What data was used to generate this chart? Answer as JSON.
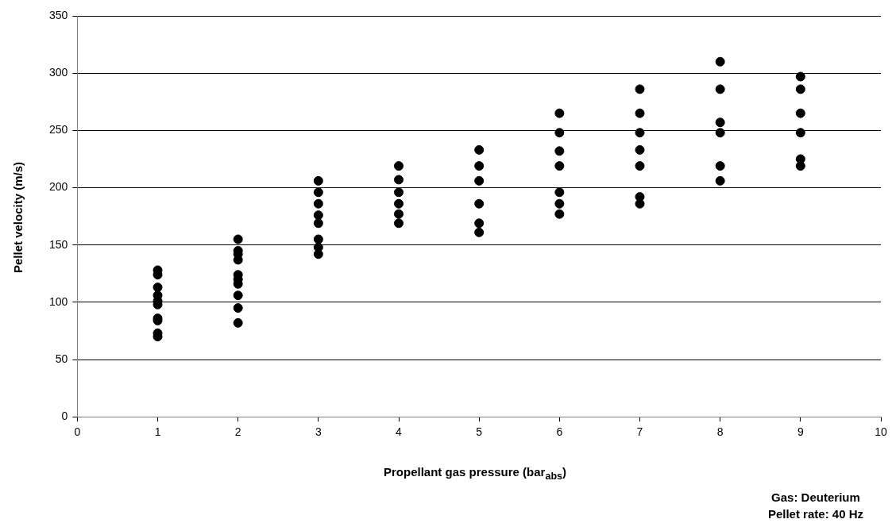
{
  "chart_data": {
    "type": "scatter",
    "xlabel": "Propellant gas pressure (bar$_{abs}$)",
    "ylabel": "Pellet velocity (m/s)",
    "annotations": [
      "Gas: Deuterium",
      "Pellet rate: 40 Hz"
    ],
    "xlim": [
      0,
      10
    ],
    "xticks": [
      0,
      1,
      2,
      3,
      4,
      5,
      6,
      7,
      8,
      9,
      10
    ],
    "ylim": [
      0,
      350
    ],
    "yticks": [
      0,
      50,
      100,
      150,
      200,
      250,
      300,
      350
    ],
    "grid": "y",
    "legend": false,
    "marker": "circle",
    "series": [
      {
        "color": "#000000",
        "x": [
          1,
          1,
          1,
          1,
          1,
          1,
          1,
          1,
          1,
          1,
          2,
          2,
          2,
          2,
          2,
          2,
          2,
          2,
          2,
          2,
          3,
          3,
          3,
          3,
          3,
          3,
          3,
          3,
          4,
          4,
          4,
          4,
          4,
          4,
          5,
          5,
          5,
          5,
          5,
          5,
          6,
          6,
          6,
          6,
          6,
          6,
          6,
          7,
          7,
          7,
          7,
          7,
          7,
          7,
          8,
          8,
          8,
          8,
          8,
          8,
          9,
          9,
          9,
          9,
          9,
          9
        ],
        "values": [
          128,
          124,
          113,
          106,
          101,
          98,
          86,
          84,
          73,
          70,
          155,
          145,
          142,
          137,
          124,
          120,
          116,
          106,
          95,
          82,
          206,
          196,
          186,
          176,
          169,
          155,
          148,
          142,
          219,
          207,
          196,
          186,
          177,
          169,
          233,
          219,
          206,
          186,
          169,
          161,
          265,
          248,
          232,
          219,
          196,
          186,
          177,
          286,
          265,
          248,
          233,
          219,
          192,
          186,
          310,
          286,
          257,
          248,
          219,
          206,
          297,
          286,
          265,
          248,
          225,
          219
        ]
      }
    ]
  }
}
